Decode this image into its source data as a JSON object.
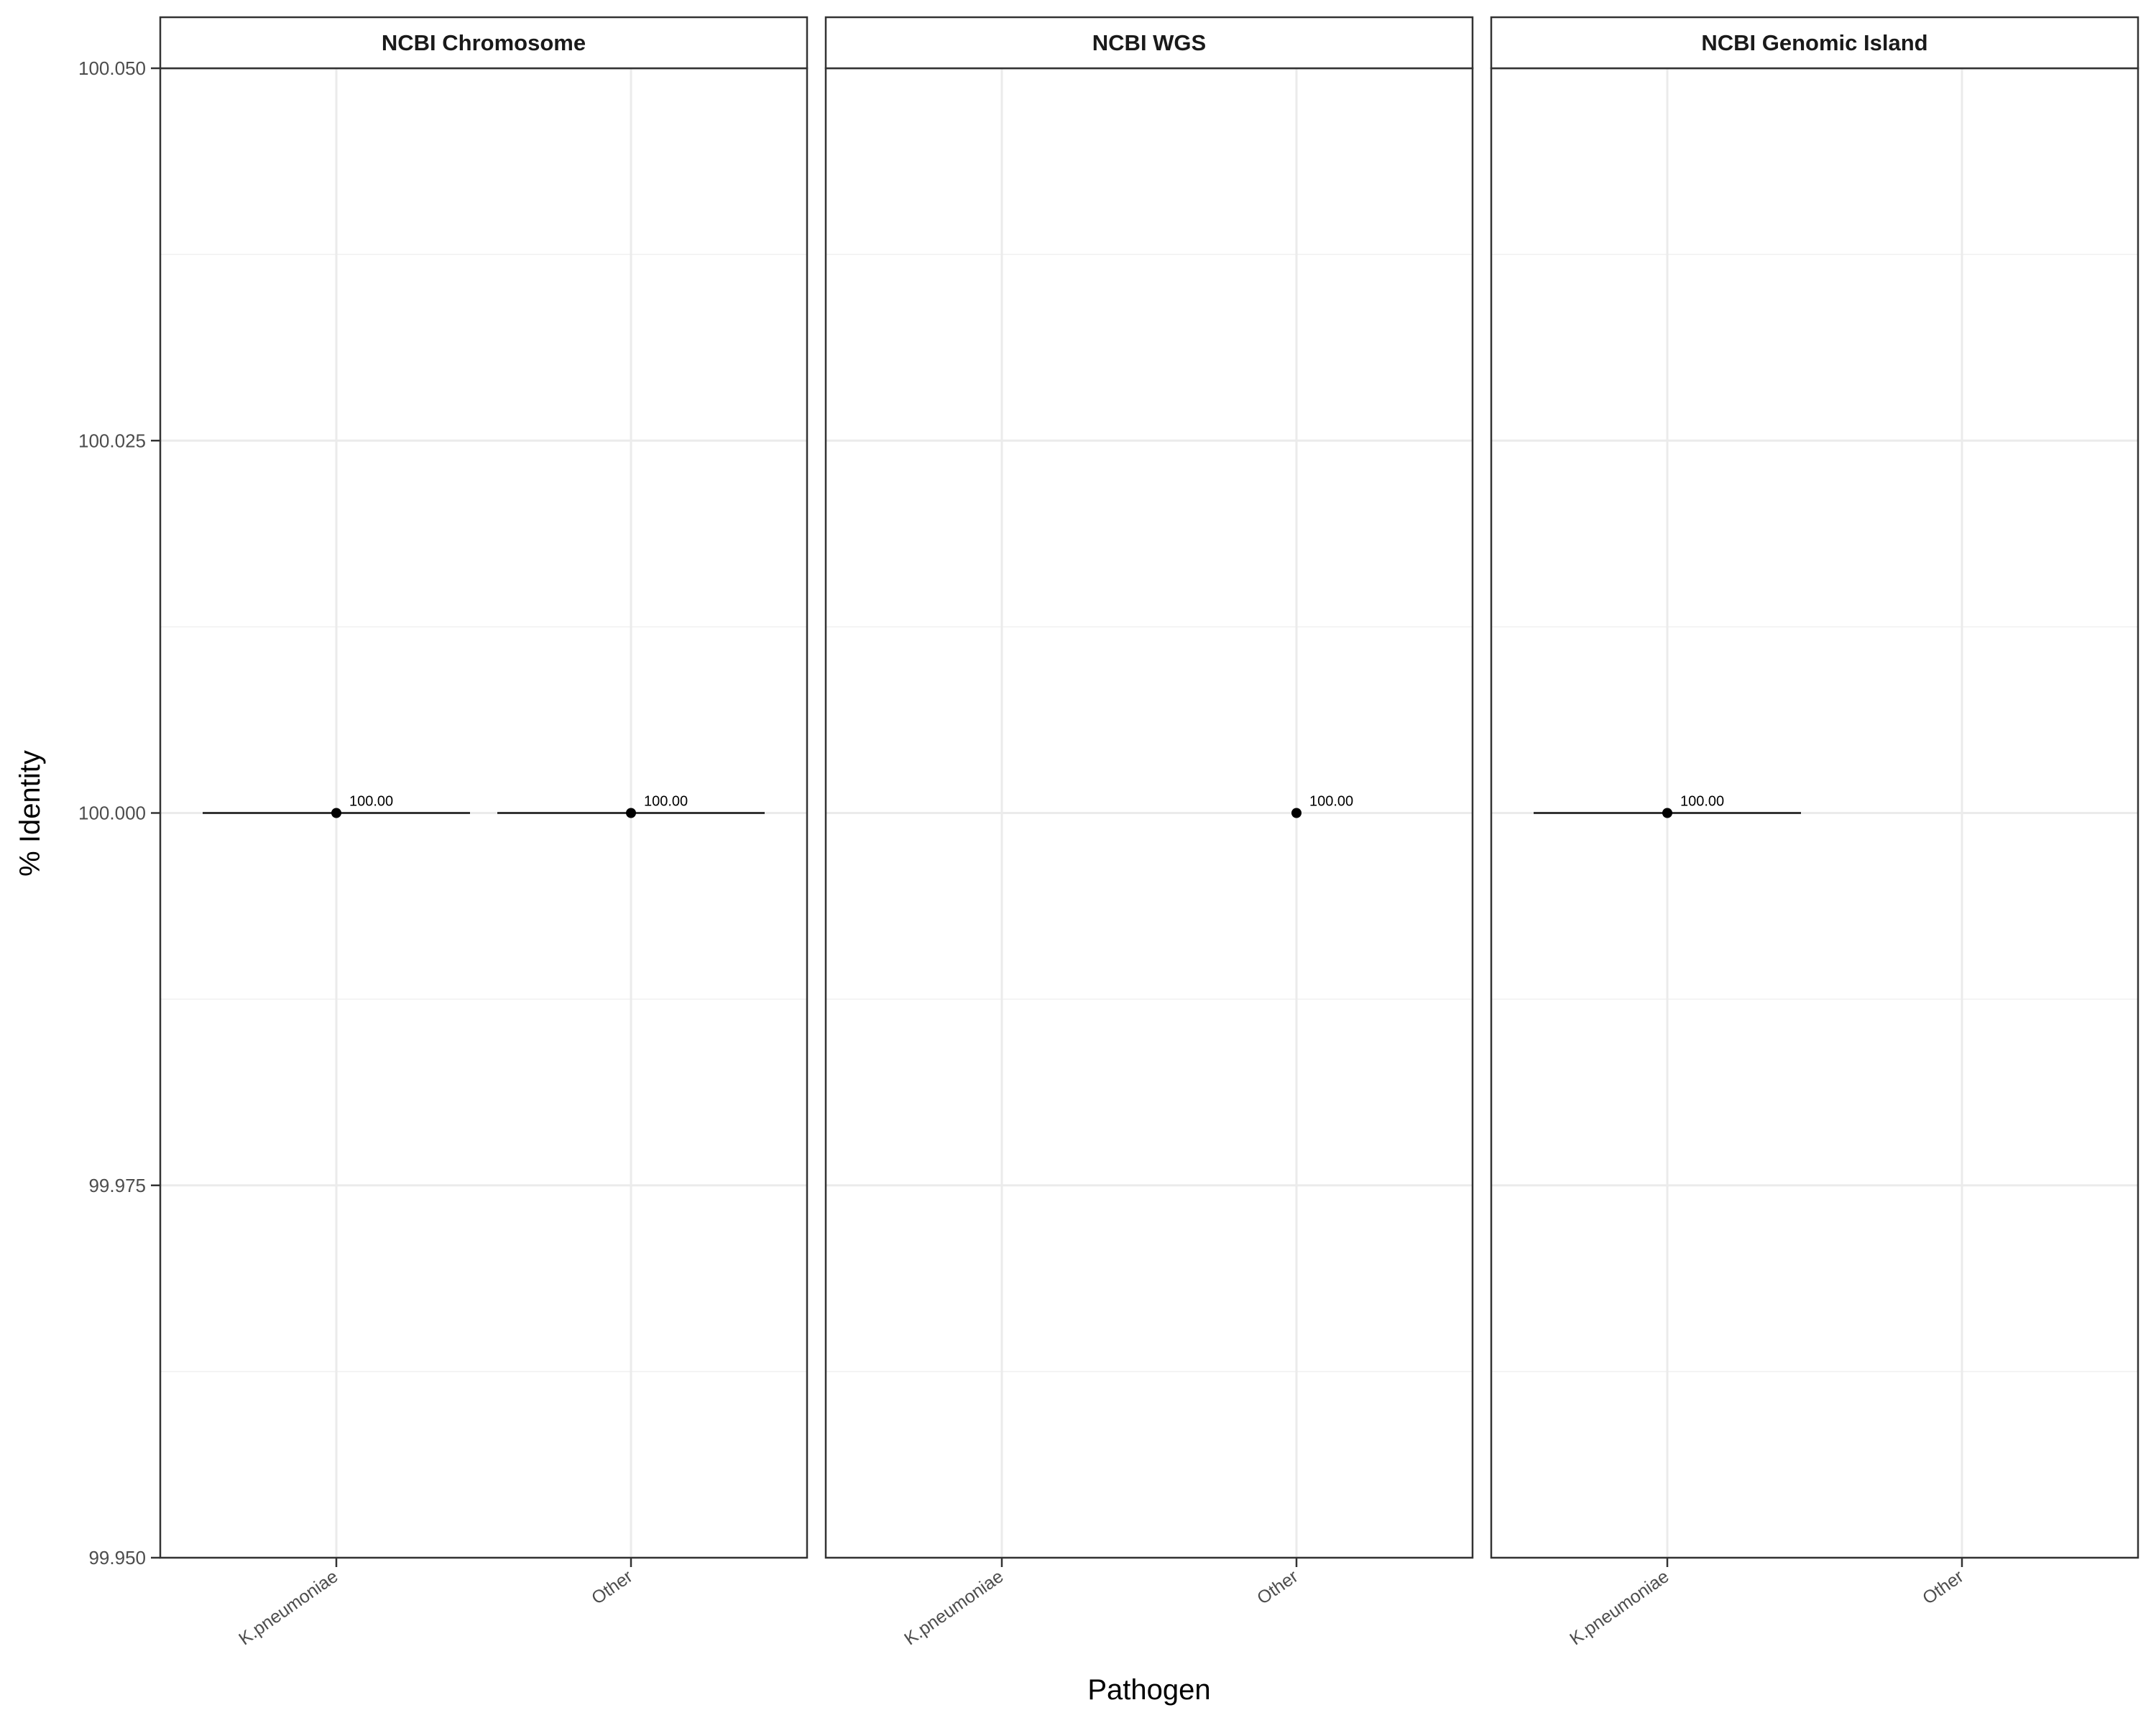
{
  "chart_data": {
    "type": "scatter",
    "subtype": "crossbar with points, faceted",
    "xlabel": "Pathogen",
    "ylabel": "% Identity",
    "ylim": [
      99.95,
      100.05
    ],
    "yticks": [
      "99.950",
      "99.975",
      "100.000",
      "100.025",
      "100.050"
    ],
    "ytick_values": [
      99.95,
      99.975,
      100.0,
      100.025,
      100.05
    ],
    "categories": [
      "K.pneumoniae",
      "Other"
    ],
    "grid": true,
    "facets": [
      {
        "title": "NCBI Chromosome",
        "points": [
          {
            "category": "K.pneumoniae",
            "value": 100.0,
            "label": "100.00",
            "crossbar": true
          },
          {
            "category": "Other",
            "value": 100.0,
            "label": "100.00",
            "crossbar": true
          }
        ]
      },
      {
        "title": "NCBI WGS",
        "points": [
          {
            "category": "Other",
            "value": 100.0,
            "label": "100.00",
            "crossbar": false
          }
        ]
      },
      {
        "title": "NCBI Genomic Island",
        "points": [
          {
            "category": "K.pneumoniae",
            "value": 100.0,
            "label": "100.00",
            "crossbar": true
          }
        ]
      }
    ]
  }
}
